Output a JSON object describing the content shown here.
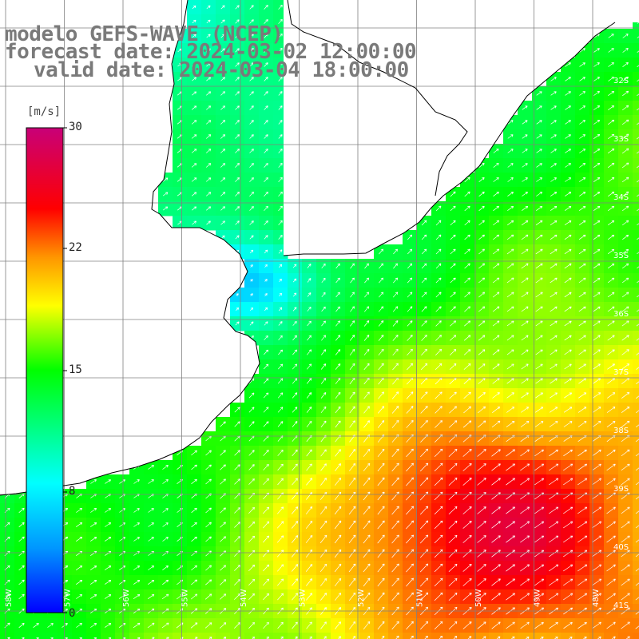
{
  "header": {
    "model_line": "modelo GEFS-WAVE (NCEP)",
    "forecast_line": "forecast date: 2024-03-02 12:00:00",
    "valid_line": "valid date: 2024-03-04 18:00:00"
  },
  "colorbar": {
    "unit": "[m/s]",
    "ticks": [
      "30",
      "22",
      "15",
      "8",
      "0"
    ],
    "min": 0,
    "max": 30,
    "colors": [
      "#0000ff",
      "#0096ff",
      "#00ffff",
      "#00ff00",
      "#ffff00",
      "#ff9600",
      "#ff0000",
      "#c80078"
    ]
  },
  "map": {
    "land_color": "#ffffff",
    "grid_color": "#808080",
    "latitude_labels": [
      "32S",
      "33S",
      "34S",
      "35S",
      "36S",
      "37S",
      "38S",
      "39S",
      "40S",
      "41S"
    ],
    "longitude_labels": [
      "58W",
      "57W",
      "56W",
      "55W",
      "54W",
      "53W",
      "52W",
      "51W",
      "50W",
      "49W",
      "48W"
    ]
  }
}
